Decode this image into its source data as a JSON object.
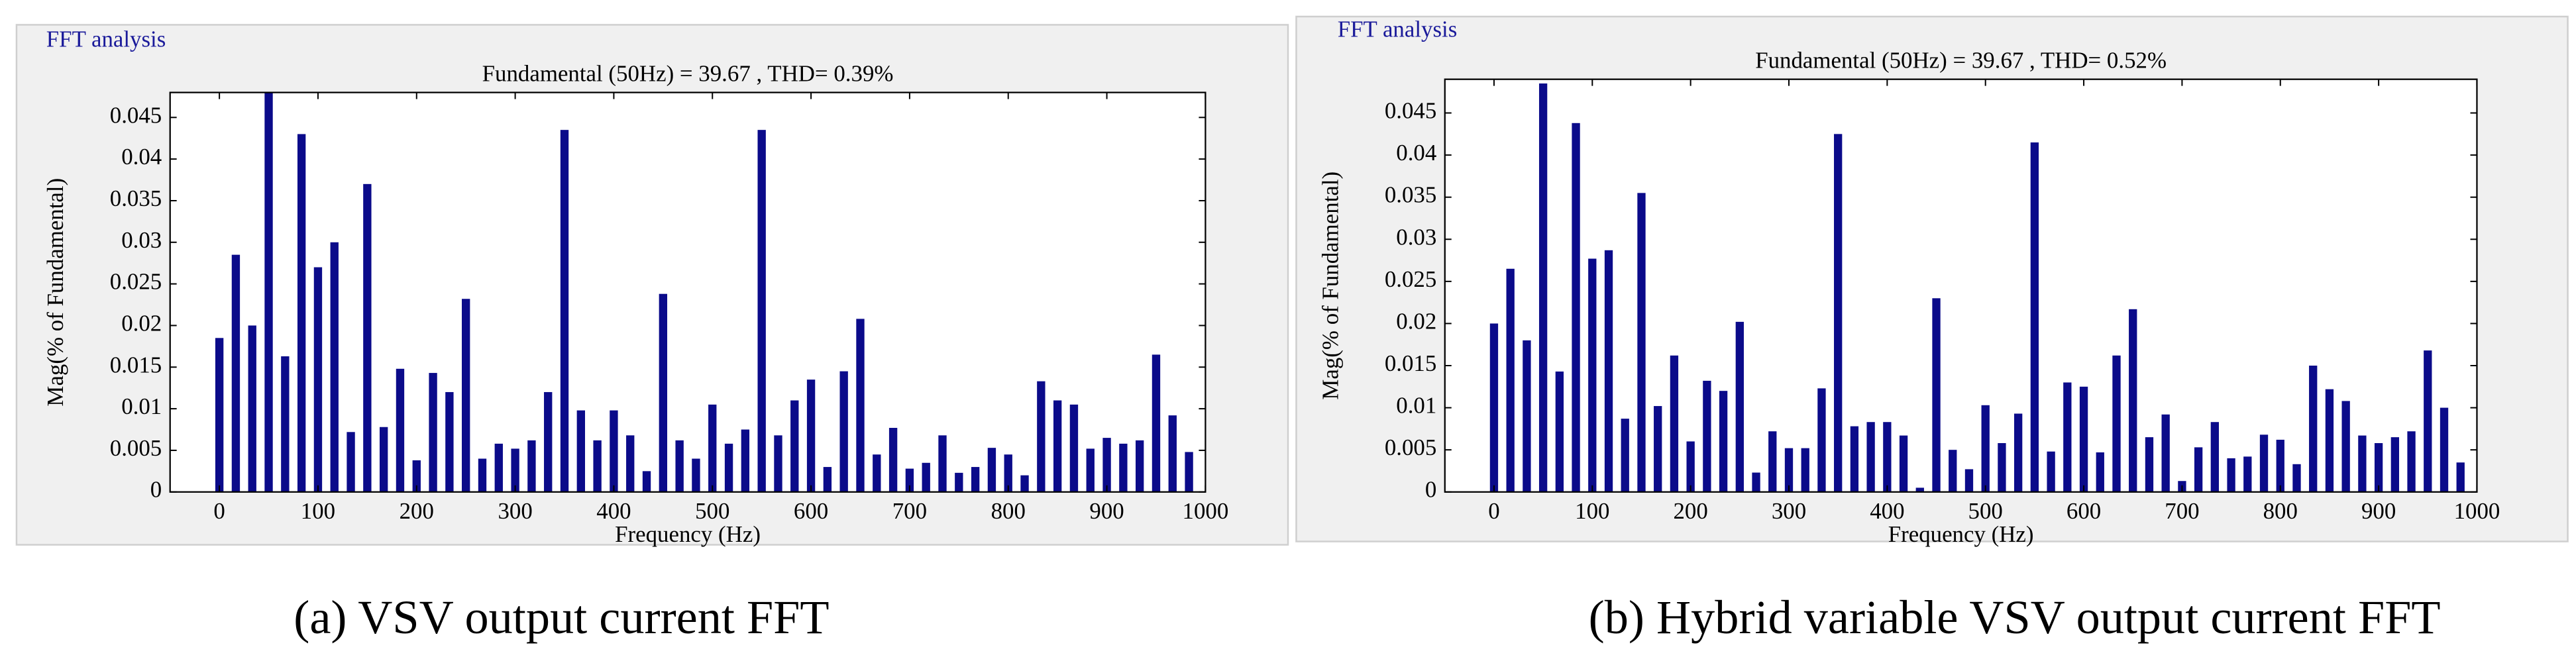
{
  "chart_data": [
    {
      "type": "bar",
      "panel_title": "FFT analysis",
      "title": "Fundamental (50Hz) = 39.67 , THD= 0.39%",
      "xlabel": "Frequency (Hz)",
      "ylabel": "Mag(% of Fundamental)",
      "caption": "(a) VSV output current FFT",
      "color": "#0b0b8a",
      "x": [
        0,
        16.67,
        33.33,
        50,
        66.67,
        83.33,
        100,
        116.67,
        133.33,
        150,
        166.67,
        183.33,
        200,
        216.67,
        233.33,
        250,
        266.67,
        283.33,
        300,
        316.67,
        333.33,
        350,
        366.67,
        383.33,
        400,
        416.67,
        433.33,
        450,
        466.67,
        483.33,
        500,
        516.67,
        533.33,
        550,
        566.67,
        583.33,
        600,
        616.67,
        633.33,
        650,
        666.67,
        683.33,
        700,
        716.67,
        733.33,
        750,
        766.67,
        783.33,
        800,
        816.67,
        833.33,
        850,
        866.67,
        883.33,
        900,
        916.67,
        933.33,
        950,
        966.67,
        983.33
      ],
      "values": [
        0.0185,
        0.0285,
        0.02,
        0.048,
        0.0163,
        0.043,
        0.027,
        0.03,
        0.0072,
        0.037,
        0.0078,
        0.0148,
        0.0038,
        0.0143,
        0.012,
        0.0232,
        0.004,
        0.0058,
        0.0052,
        0.0062,
        0.012,
        0.0435,
        0.0098,
        0.0062,
        0.0098,
        0.0068,
        0.0025,
        0.0238,
        0.0062,
        0.004,
        0.0105,
        0.0058,
        0.0075,
        0.0435,
        0.0068,
        0.011,
        0.0135,
        0.003,
        0.0145,
        0.0208,
        0.0045,
        0.0077,
        0.0028,
        0.0035,
        0.0068,
        0.0023,
        0.003,
        0.0053,
        0.0045,
        0.002,
        0.0133,
        0.011,
        0.0105,
        0.0052,
        0.0065,
        0.0058,
        0.0062,
        0.0165,
        0.0092,
        0.0048
      ],
      "xlim": [
        -50,
        1000
      ],
      "xticks": [
        0,
        100,
        200,
        300,
        400,
        500,
        600,
        700,
        800,
        900,
        1000
      ],
      "ylim": [
        0,
        0.048
      ],
      "yticks": [
        0,
        0.005,
        0.01,
        0.015,
        0.02,
        0.025,
        0.03,
        0.035,
        0.04,
        0.045
      ]
    },
    {
      "type": "bar",
      "panel_title": "FFT analysis",
      "title": "Fundamental (50Hz) = 39.67 , THD= 0.52%",
      "xlabel": "Frequency (Hz)",
      "ylabel": "Mag(% of Fundamental)",
      "caption": "(b) Hybrid variable VSV output current FFT",
      "color": "#0b0b8a",
      "x": [
        0,
        16.67,
        33.33,
        50,
        66.67,
        83.33,
        100,
        116.67,
        133.33,
        150,
        166.67,
        183.33,
        200,
        216.67,
        233.33,
        250,
        266.67,
        283.33,
        300,
        316.67,
        333.33,
        350,
        366.67,
        383.33,
        400,
        416.67,
        433.33,
        450,
        466.67,
        483.33,
        500,
        516.67,
        533.33,
        550,
        566.67,
        583.33,
        600,
        616.67,
        633.33,
        650,
        666.67,
        683.33,
        700,
        716.67,
        733.33,
        750,
        766.67,
        783.33,
        800,
        816.67,
        833.33,
        850,
        866.67,
        883.33,
        900,
        916.67,
        933.33,
        950,
        966.67,
        983.33
      ],
      "values": [
        0.02,
        0.0265,
        0.018,
        0.0485,
        0.0143,
        0.0438,
        0.0277,
        0.0287,
        0.0087,
        0.0355,
        0.0102,
        0.0162,
        0.006,
        0.0132,
        0.012,
        0.0202,
        0.0023,
        0.0072,
        0.0052,
        0.0052,
        0.0123,
        0.0425,
        0.0078,
        0.0083,
        0.0083,
        0.0067,
        0.0005,
        0.023,
        0.005,
        0.0027,
        0.0103,
        0.0058,
        0.0093,
        0.0415,
        0.0048,
        0.013,
        0.0125,
        0.0047,
        0.0162,
        0.0217,
        0.0065,
        0.0092,
        0.0013,
        0.0053,
        0.0083,
        0.004,
        0.0042,
        0.0068,
        0.0062,
        0.0033,
        0.015,
        0.0122,
        0.0108,
        0.0067,
        0.0058,
        0.0065,
        0.0072,
        0.0168,
        0.01,
        0.0035
      ],
      "xlim": [
        -50,
        1000
      ],
      "xticks": [
        0,
        100,
        200,
        300,
        400,
        500,
        600,
        700,
        800,
        900,
        1000
      ],
      "ylim": [
        0,
        0.049
      ],
      "yticks": [
        0,
        0.005,
        0.01,
        0.015,
        0.02,
        0.025,
        0.03,
        0.035,
        0.04,
        0.045
      ]
    }
  ]
}
